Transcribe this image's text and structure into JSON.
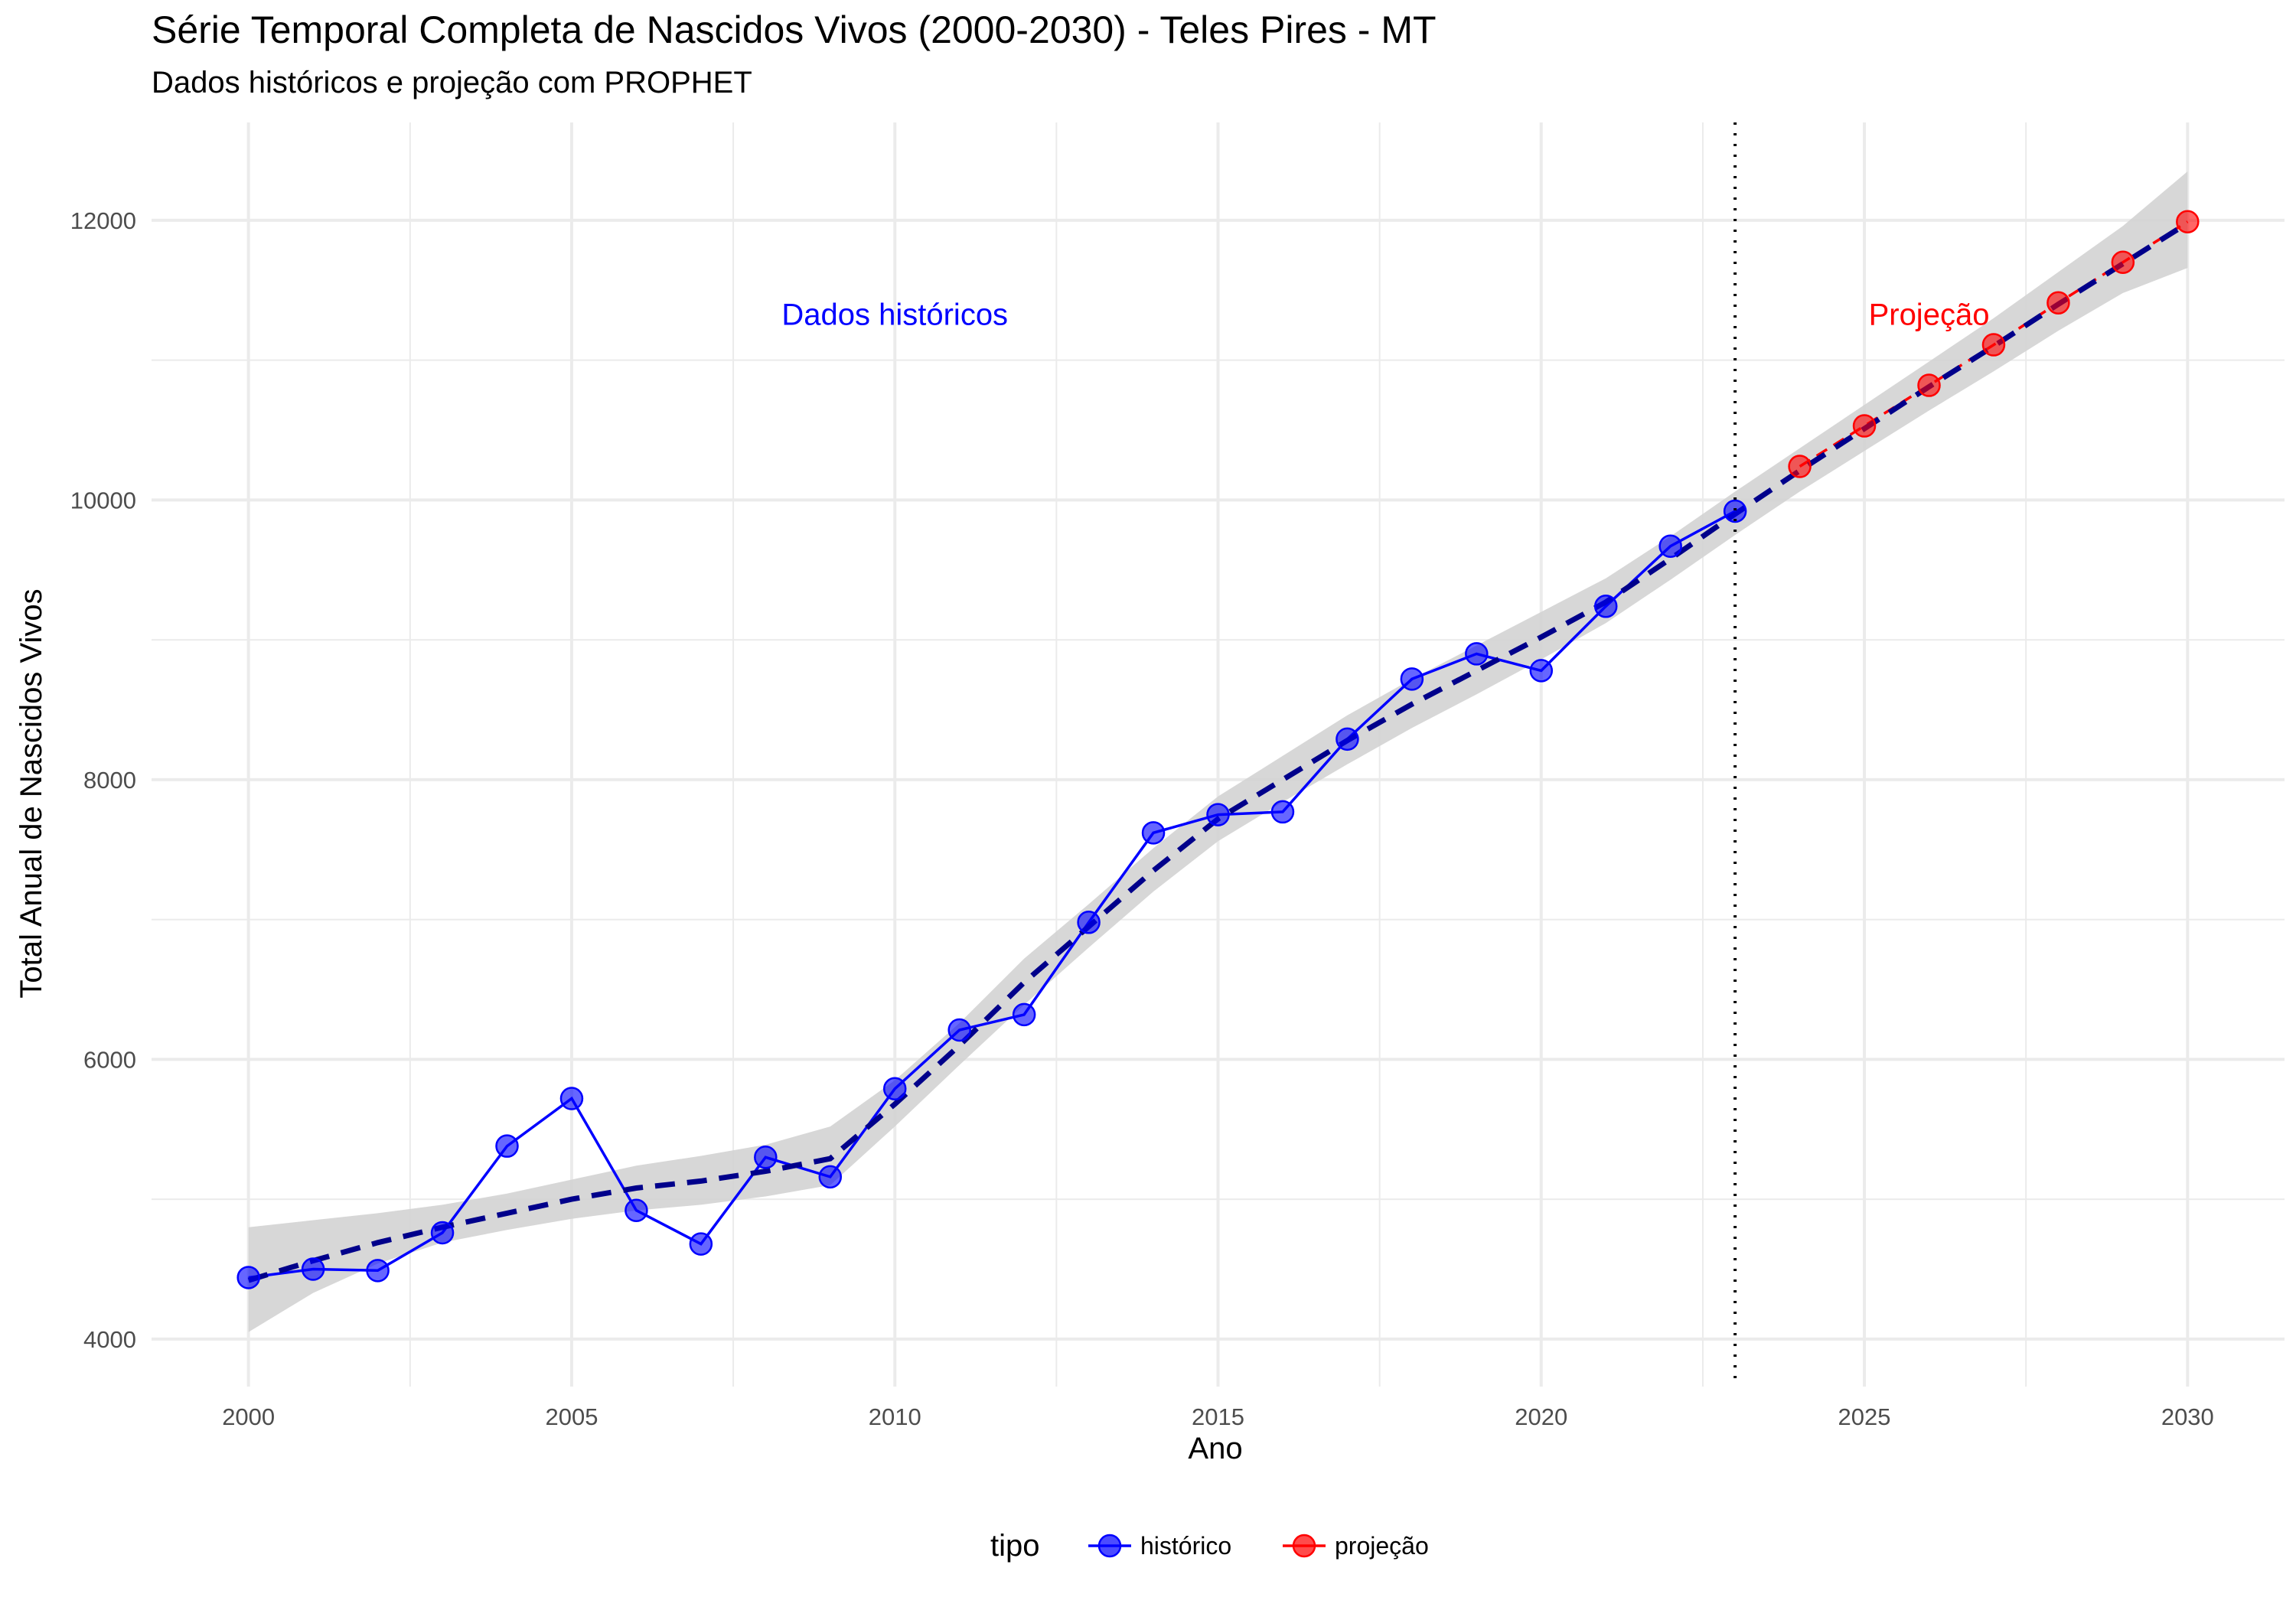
{
  "chart_data": {
    "type": "line",
    "title": "Série Temporal Completa de Nascidos Vivos (2000-2030) -  Teles Pires - MT",
    "subtitle": "Dados históricos e projeção com PROPHET",
    "xlabel": "Ano",
    "ylabel": "Total Anual de Nascidos Vivos",
    "xlim": [
      1998.5,
      2031.5
    ],
    "ylim": [
      3660,
      12700
    ],
    "x_ticks": [
      2000,
      2005,
      2010,
      2015,
      2020,
      2025,
      2030
    ],
    "y_ticks": [
      4000,
      6000,
      8000,
      10000,
      12000
    ],
    "grid": true,
    "legend": {
      "title": "tipo",
      "position": "bottom"
    },
    "vline_x": 2023,
    "series": [
      {
        "name": "histórico",
        "color": "#0000ff",
        "line_style": "solid",
        "x": [
          2000,
          2001,
          2002,
          2003,
          2004,
          2005,
          2006,
          2007,
          2008,
          2009,
          2010,
          2011,
          2012,
          2013,
          2014,
          2015,
          2016,
          2017,
          2018,
          2019,
          2020,
          2021,
          2022,
          2023
        ],
        "y": [
          4440,
          4500,
          4490,
          4760,
          5380,
          5720,
          4920,
          4680,
          5300,
          5160,
          5790,
          6210,
          6320,
          6980,
          7620,
          7750,
          7770,
          8290,
          8720,
          8900,
          8780,
          9240,
          9670,
          9920
        ]
      },
      {
        "name": "projeção",
        "color": "#ff0000",
        "line_style": "dashed",
        "x": [
          2024,
          2025,
          2026,
          2027,
          2028,
          2029,
          2030
        ],
        "y": [
          10240,
          10530,
          10820,
          11110,
          11410,
          11700,
          11990
        ]
      }
    ],
    "trend": {
      "color": "#00008b",
      "line_style": "dashed",
      "ribbon_color": "#d3d3d3",
      "x": [
        2000,
        2001,
        2002,
        2003,
        2004,
        2005,
        2006,
        2007,
        2008,
        2009,
        2010,
        2011,
        2012,
        2013,
        2014,
        2015,
        2016,
        2017,
        2018,
        2019,
        2020,
        2021,
        2022,
        2023,
        2024,
        2025,
        2026,
        2027,
        2028,
        2029,
        2030
      ],
      "y": [
        4420,
        4560,
        4690,
        4800,
        4900,
        5000,
        5080,
        5130,
        5200,
        5290,
        5680,
        6100,
        6550,
        6950,
        7350,
        7720,
        8000,
        8280,
        8540,
        8780,
        9020,
        9270,
        9580,
        9900,
        10210,
        10510,
        10810,
        11100,
        11400,
        11690,
        11980
      ],
      "lower": [
        4050,
        4330,
        4540,
        4690,
        4780,
        4860,
        4920,
        4960,
        5020,
        5100,
        5520,
        5960,
        6390,
        6800,
        7200,
        7560,
        7840,
        8110,
        8370,
        8610,
        8860,
        9120,
        9430,
        9750,
        10060,
        10350,
        10640,
        10920,
        11210,
        11480,
        11660
      ],
      "upper": [
        4800,
        4850,
        4900,
        4960,
        5040,
        5140,
        5240,
        5310,
        5390,
        5520,
        5850,
        6260,
        6720,
        7110,
        7510,
        7880,
        8170,
        8460,
        8720,
        8960,
        9200,
        9440,
        9740,
        10060,
        10370,
        10680,
        10990,
        11300,
        11630,
        11960,
        12350
      ]
    },
    "annotations": [
      {
        "text": "Dados históricos",
        "x": 2010,
        "y": 11330,
        "color": "#0000ff"
      },
      {
        "text": "Projeção",
        "x": 2026,
        "y": 11330,
        "color": "#ff0000"
      }
    ]
  }
}
